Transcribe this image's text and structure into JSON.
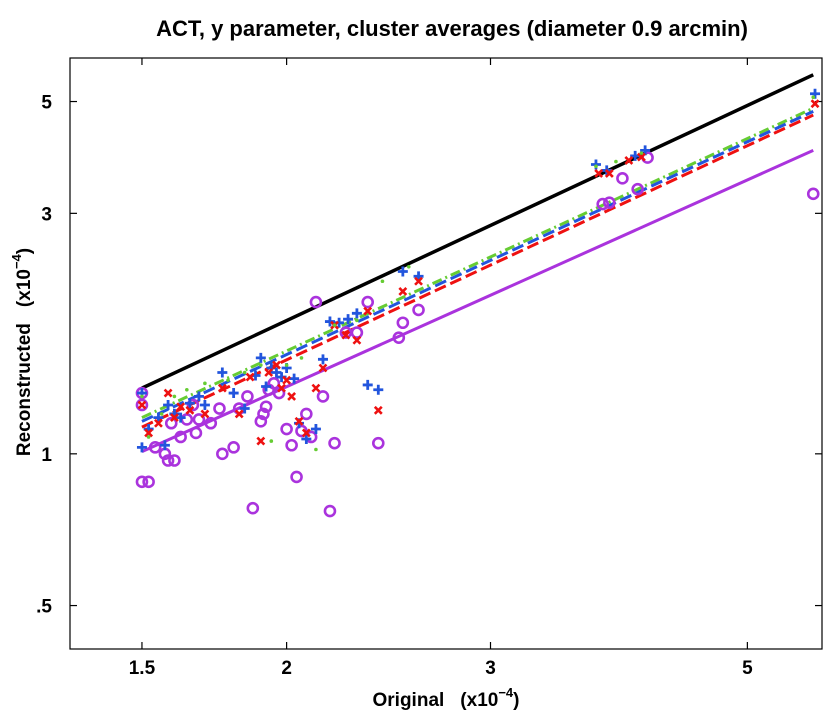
{
  "chart_data": {
    "type": "scatter",
    "title": "ACT, y parameter, cluster averages (diameter 0.9 arcmin)",
    "xlabel": "Original",
    "ylabel": "Reconstructed",
    "axis_unit_prefix": "(x10",
    "axis_unit_exponent": "−4",
    "axis_unit_suffix": ")",
    "xscale": "log",
    "yscale": "log",
    "xlim": [
      1.3,
      5.8
    ],
    "ylim": [
      0.41,
      6.1
    ],
    "x_ticks": [
      {
        "value": 1.5,
        "label": "1.5"
      },
      {
        "value": 2,
        "label": "2"
      },
      {
        "value": 3,
        "label": "3"
      },
      {
        "value": 5,
        "label": "5"
      }
    ],
    "y_ticks": [
      {
        "value": 0.5,
        "label": ".5"
      },
      {
        "value": 1,
        "label": "1"
      },
      {
        "value": 3,
        "label": "3"
      },
      {
        "value": 5,
        "label": "5"
      }
    ],
    "lines": [
      {
        "name": "identity",
        "style": "solid",
        "color": "#000000",
        "x": [
          1.5,
          5.7
        ],
        "y": [
          1.35,
          5.65
        ]
      },
      {
        "name": "fit-green",
        "style": "dashdot",
        "color": "#66cc33",
        "x": [
          1.5,
          5.7
        ],
        "y": [
          1.18,
          4.85
        ]
      },
      {
        "name": "fit-blue",
        "style": "dashed",
        "color": "#2255dd",
        "x": [
          1.5,
          5.7
        ],
        "y": [
          1.16,
          4.78
        ]
      },
      {
        "name": "fit-red",
        "style": "dashed",
        "color": "#ee1111",
        "x": [
          1.5,
          5.7
        ],
        "y": [
          1.13,
          4.7
        ]
      },
      {
        "name": "fit-purple",
        "style": "solid",
        "color": "#aa33dd",
        "x": [
          1.5,
          5.7
        ],
        "y": [
          1.01,
          4.0
        ]
      }
    ],
    "series": [
      {
        "name": "purple-circles",
        "marker": "circle",
        "color": "#aa33dd",
        "x": [
          1.5,
          1.5,
          1.5,
          1.52,
          1.54,
          1.57,
          1.58,
          1.59,
          1.6,
          1.62,
          1.64,
          1.66,
          1.67,
          1.68,
          1.72,
          1.75,
          1.76,
          1.8,
          1.82,
          1.85,
          1.87,
          1.9,
          1.91,
          1.92,
          1.93,
          1.95,
          1.97,
          2.0,
          2.02,
          2.04,
          2.06,
          2.08,
          2.1,
          2.12,
          2.15,
          2.18,
          2.2,
          2.25,
          2.3,
          2.35,
          2.4,
          2.5,
          2.52,
          2.6,
          3.75,
          3.8,
          3.9,
          4.02,
          4.1,
          5.7
        ],
        "y": [
          0.88,
          1.25,
          1.32,
          0.88,
          1.03,
          1.0,
          0.97,
          1.15,
          0.97,
          1.08,
          1.17,
          1.25,
          1.1,
          1.17,
          1.15,
          1.23,
          1.0,
          1.03,
          1.23,
          1.3,
          0.78,
          1.16,
          1.2,
          1.24,
          1.34,
          1.38,
          1.32,
          1.12,
          1.04,
          0.9,
          1.11,
          1.2,
          1.08,
          2.0,
          1.3,
          0.77,
          1.05,
          1.74,
          1.74,
          2.0,
          1.05,
          1.7,
          1.82,
          1.93,
          3.13,
          3.15,
          3.52,
          3.35,
          3.87,
          3.28
        ]
      },
      {
        "name": "blue-plus",
        "marker": "plus",
        "color": "#2255dd",
        "x": [
          1.5,
          1.5,
          1.52,
          1.55,
          1.57,
          1.58,
          1.6,
          1.62,
          1.65,
          1.68,
          1.7,
          1.76,
          1.8,
          1.84,
          1.88,
          1.9,
          1.92,
          1.94,
          1.96,
          1.98,
          2.0,
          2.03,
          2.05,
          2.08,
          2.12,
          2.15,
          2.18,
          2.22,
          2.26,
          2.3,
          2.35,
          2.4,
          2.52,
          2.6,
          3.7,
          3.78,
          4.0,
          4.08,
          5.72
        ],
        "y": [
          1.03,
          1.32,
          1.12,
          1.18,
          1.04,
          1.25,
          1.2,
          1.18,
          1.26,
          1.3,
          1.25,
          1.45,
          1.32,
          1.23,
          1.43,
          1.55,
          1.36,
          1.48,
          1.45,
          1.42,
          1.48,
          1.41,
          1.15,
          1.07,
          1.12,
          1.54,
          1.83,
          1.82,
          1.85,
          1.9,
          1.37,
          1.34,
          2.3,
          2.25,
          3.75,
          3.65,
          3.9,
          4.0,
          5.18
        ]
      },
      {
        "name": "red-x",
        "marker": "x",
        "color": "#ee1111",
        "x": [
          1.5,
          1.52,
          1.55,
          1.58,
          1.6,
          1.62,
          1.65,
          1.7,
          1.76,
          1.82,
          1.86,
          1.9,
          1.93,
          1.96,
          1.98,
          2.0,
          2.02,
          2.05,
          2.08,
          2.12,
          2.15,
          2.2,
          2.25,
          2.3,
          2.35,
          2.4,
          2.52,
          2.6,
          3.72,
          3.8,
          3.95,
          4.05,
          5.72
        ],
        "y": [
          1.25,
          1.1,
          1.15,
          1.32,
          1.18,
          1.24,
          1.22,
          1.2,
          1.35,
          1.2,
          1.42,
          1.06,
          1.45,
          1.5,
          1.35,
          1.4,
          1.3,
          1.16,
          1.1,
          1.35,
          1.48,
          1.8,
          1.72,
          1.68,
          1.92,
          1.22,
          2.1,
          2.2,
          3.6,
          3.6,
          3.82,
          3.88,
          4.95
        ]
      },
      {
        "name": "green-dots",
        "marker": "dot",
        "color": "#66cc33",
        "x": [
          1.5,
          1.52,
          1.56,
          1.6,
          1.64,
          1.7,
          1.78,
          1.84,
          1.9,
          1.94,
          2.0,
          2.06,
          2.12,
          2.2,
          2.3,
          2.42,
          2.55,
          3.7,
          3.85,
          4.05,
          5.7
        ],
        "y": [
          1.3,
          1.08,
          1.2,
          1.3,
          1.34,
          1.38,
          1.4,
          1.45,
          1.5,
          1.06,
          1.5,
          1.55,
          1.02,
          1.8,
          1.84,
          2.2,
          2.35,
          3.72,
          3.8,
          3.95,
          5.1
        ]
      }
    ]
  }
}
